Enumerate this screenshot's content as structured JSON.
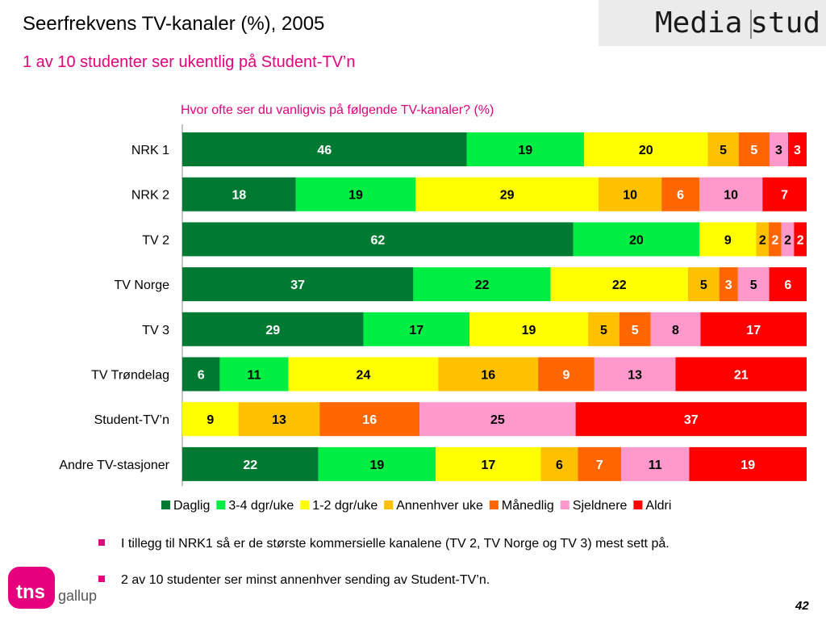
{
  "header": {
    "title": "Seerfrekvens TV-kanaler (%), 2005",
    "subtitle": "1 av 10 studenter ser ukentlig på Student-TV’n",
    "logo_left": "Media",
    "logo_right": "stud"
  },
  "chart_data": {
    "type": "bar",
    "orientation": "horizontal",
    "stacked": true,
    "title": "Hvor ofte ser du vanligvis på følgende TV-kanaler? (%)",
    "categories": [
      "NRK 1",
      "NRK 2",
      "TV 2",
      "TV Norge",
      "TV 3",
      "TV Trøndelag",
      "Student-TV’n",
      "Andre TV-stasjoner"
    ],
    "series": [
      {
        "name": "Daglig",
        "color": "#007a33",
        "label_color": "#ffffff",
        "values": [
          46,
          18,
          62,
          37,
          29,
          6,
          0,
          22
        ]
      },
      {
        "name": "3-4 dgr/uke",
        "color": "#00ee44",
        "label_color": "#000000",
        "values": [
          19,
          19,
          20,
          22,
          17,
          11,
          0,
          19
        ]
      },
      {
        "name": "1-2 dgr/uke",
        "color": "#ffff00",
        "label_color": "#000000",
        "values": [
          20,
          29,
          9,
          22,
          19,
          24,
          9,
          17
        ]
      },
      {
        "name": "Annenhver uke",
        "color": "#ffc000",
        "label_color": "#000000",
        "values": [
          5,
          10,
          2,
          5,
          5,
          16,
          13,
          6
        ]
      },
      {
        "name": "Månedlig",
        "color": "#ff6600",
        "label_color": "#ffffff",
        "values": [
          5,
          6,
          2,
          3,
          5,
          9,
          16,
          7
        ]
      },
      {
        "name": "Sjeldnere",
        "color": "#ff99cc",
        "label_color": "#000000",
        "values": [
          3,
          10,
          2,
          5,
          8,
          13,
          25,
          11
        ]
      },
      {
        "name": "Aldri",
        "color": "#ff0000",
        "label_color": "#ffffff",
        "values": [
          3,
          7,
          2,
          6,
          17,
          21,
          37,
          19
        ]
      }
    ],
    "legend_position": "bottom",
    "grid": false
  },
  "bullets": [
    "I tillegg til NRK1 så er de største kommersielle kanalene (TV 2, TV Norge og TV 3) mest sett på.",
    "2 av 10 studenter ser minst annenhver sending av  Student-TV’n."
  ],
  "footer": {
    "brand_tns": "tns",
    "brand_gallup": "gallup",
    "page_number": "42"
  },
  "colors": {
    "accent": "#e6007e"
  }
}
